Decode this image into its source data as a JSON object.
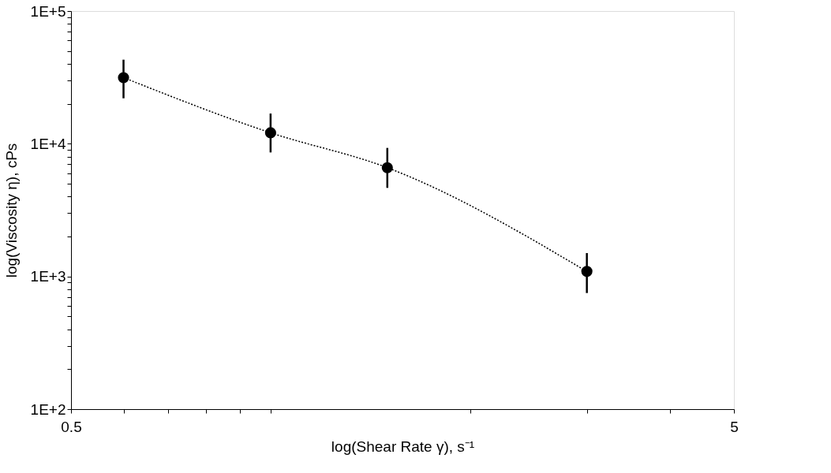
{
  "chart_data": {
    "type": "line",
    "xlabel": "log(Shear Rate γ), s⁻¹",
    "ylabel": "log(Viscosity η), cPs",
    "log": "xy",
    "grid": false,
    "marker": "circle",
    "line_style": "dotted",
    "xlim": [
      0.5,
      5
    ],
    "ylim": [
      100,
      100000
    ],
    "xticks": [
      0.5,
      {
        "value": 0.6,
        "label": null
      },
      {
        "value": 0.7,
        "label": null
      },
      {
        "value": 0.8,
        "label": null
      },
      {
        "value": 0.9,
        "label": null
      },
      {
        "value": 1,
        "label": null
      },
      {
        "value": 2,
        "label": null
      },
      {
        "value": 3,
        "label": null
      },
      {
        "value": 4,
        "label": null
      },
      5
    ],
    "yticks": [
      {
        "value": 100,
        "label": "1E+2"
      },
      {
        "value": 200,
        "label": null
      },
      {
        "value": 300,
        "label": null
      },
      {
        "value": 400,
        "label": null
      },
      {
        "value": 500,
        "label": null
      },
      {
        "value": 600,
        "label": null
      },
      {
        "value": 700,
        "label": null
      },
      {
        "value": 800,
        "label": null
      },
      {
        "value": 900,
        "label": null
      },
      {
        "value": 1000,
        "label": "1E+3"
      },
      {
        "value": 2000,
        "label": null
      },
      {
        "value": 3000,
        "label": null
      },
      {
        "value": 4000,
        "label": null
      },
      {
        "value": 5000,
        "label": null
      },
      {
        "value": 6000,
        "label": null
      },
      {
        "value": 7000,
        "label": null
      },
      {
        "value": 8000,
        "label": null
      },
      {
        "value": 9000,
        "label": null
      },
      {
        "value": 10000,
        "label": "1E+4"
      },
      {
        "value": 20000,
        "label": null
      },
      {
        "value": 30000,
        "label": null
      },
      {
        "value": 40000,
        "label": null
      },
      {
        "value": 50000,
        "label": null
      },
      {
        "value": 60000,
        "label": null
      },
      {
        "value": 70000,
        "label": null
      },
      {
        "value": 80000,
        "label": null
      },
      {
        "value": 90000,
        "label": null
      },
      {
        "value": 100000,
        "label": "1E+5"
      }
    ],
    "series": [
      {
        "color": "#000000",
        "x": [
          0.6,
          1,
          1.5,
          3
        ],
        "values": [
          31500,
          12100,
          6600,
          1090
        ],
        "errors": [
          [
            22000,
            43000
          ],
          [
            8600,
            16900
          ],
          [
            4650,
            9300
          ],
          [
            750,
            1500
          ]
        ]
      }
    ]
  }
}
